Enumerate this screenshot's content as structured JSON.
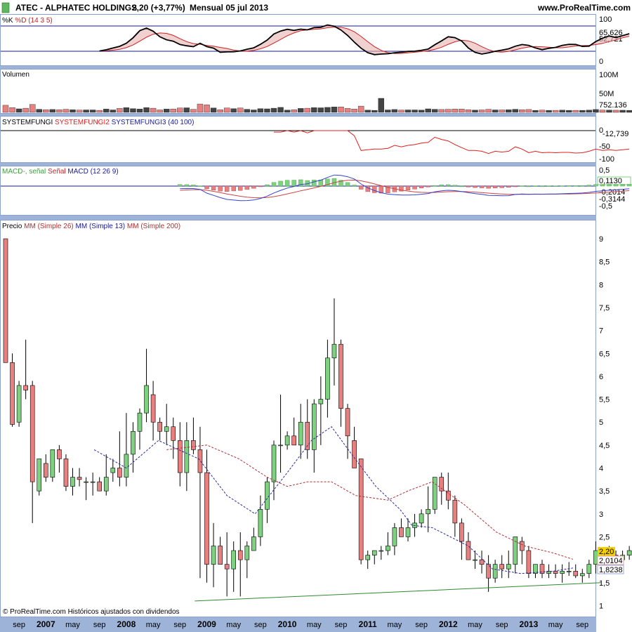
{
  "header": {
    "symbol": "ATEC - ALPHATEC HOLDINGS",
    "price_change": "2,20 (+3,77%)",
    "period_date": "Mensual  05 jul 2013",
    "site": "www.ProRealTime.com"
  },
  "footer": {
    "copyright": "© ProRealTime.com  Históricos ajustados con dividendos"
  },
  "colors": {
    "up": "#7ed17e",
    "down": "#e88080",
    "panel_border": "#8aa2cc",
    "ma26": "#b03030",
    "ma13": "#2a2aa0",
    "trend": "#2e8b2e",
    "stoch_k": "#000000",
    "stoch_d": "#cc2222",
    "systemfungi2": "#e02020",
    "macd_line": "#3344cc",
    "signal_line": "#cc4444"
  },
  "panels": {
    "stoch": {
      "labels": [
        "%K",
        "%D",
        "(14 3 5)"
      ],
      "ticks": [
        "100",
        "0"
      ],
      "values": [
        "65,626",
        "52,721"
      ]
    },
    "volume": {
      "label": "Volumen",
      "ticks": [
        "100M",
        "50M"
      ],
      "values": [
        "752.136"
      ]
    },
    "systemfungi": {
      "labels": [
        "SYSTEMFUNGI",
        "SYSTEMFUNGI2",
        "SYSTEMFUNGI3",
        "(40 100)"
      ],
      "ticks": [
        "0",
        "-50",
        "-100"
      ],
      "values": [
        "-12,739"
      ]
    },
    "macd": {
      "labels": [
        "MACD-,",
        "señal",
        "Señal",
        "MACD",
        "(12 26 9)"
      ],
      "ticks": [
        "0,5",
        "-0,5"
      ],
      "values": [
        "0,1130",
        "-0,2014",
        "-0,3144"
      ]
    },
    "price": {
      "labels": [
        "Precio",
        "MM",
        "(Simple 26)",
        "MM",
        "(Simple 13)",
        "MM",
        "(Simple 200)"
      ],
      "ticks": [
        "9",
        "8,5",
        "8",
        "7,5",
        "7",
        "6,5",
        "6",
        "5,5",
        "5",
        "4,5",
        "4",
        "3,5",
        "3",
        "2,5",
        "2",
        "1,5",
        "1"
      ],
      "values": [
        "2,20",
        "2,0104",
        "1,8238"
      ]
    }
  },
  "chart_data": {
    "type": "candlestick",
    "frequency": "monthly",
    "start": "2006-07",
    "x_axis": {
      "ticks": [
        "sep",
        "2007",
        "may",
        "sep",
        "2008",
        "may",
        "sep",
        "2009",
        "may",
        "sep",
        "2010",
        "may",
        "sep",
        "2011",
        "may",
        "sep",
        "2012",
        "may",
        "sep",
        "2013",
        "may",
        "sep"
      ]
    },
    "y_axis": {
      "range": [
        0.8,
        9.1
      ]
    },
    "ohlc": [
      [
        9.0,
        9.0,
        6.3,
        6.3
      ],
      [
        6.3,
        6.5,
        4.9,
        4.95
      ],
      [
        5.0,
        5.9,
        4.9,
        5.8
      ],
      [
        5.8,
        6.8,
        5.5,
        5.7
      ],
      [
        5.8,
        5.9,
        2.8,
        3.7
      ],
      [
        3.5,
        4.2,
        3.4,
        4.2
      ],
      [
        4.1,
        4.3,
        3.7,
        3.8
      ],
      [
        3.8,
        4.4,
        3.7,
        4.4
      ],
      [
        4.4,
        4.5,
        3.9,
        4.2
      ],
      [
        4.2,
        4.3,
        3.5,
        3.6
      ],
      [
        3.6,
        4.0,
        3.4,
        3.8
      ],
      [
        3.8,
        4.0,
        3.6,
        3.75
      ],
      [
        3.7,
        3.8,
        3.3,
        3.7
      ],
      [
        3.7,
        3.9,
        3.4,
        3.7
      ],
      [
        3.7,
        3.8,
        3.5,
        3.5
      ],
      [
        3.5,
        4.3,
        3.4,
        3.8
      ],
      [
        3.9,
        4.2,
        3.7,
        4.0
      ],
      [
        4.0,
        4.8,
        3.6,
        3.8
      ],
      [
        3.8,
        5.2,
        3.6,
        4.3
      ],
      [
        4.3,
        5.0,
        3.9,
        4.8
      ],
      [
        4.8,
        5.3,
        4.4,
        5.2
      ],
      [
        5.2,
        6.6,
        5.0,
        5.8
      ],
      [
        5.6,
        5.9,
        4.6,
        5.0
      ],
      [
        5.0,
        5.1,
        4.6,
        4.8
      ],
      [
        4.8,
        5.4,
        4.5,
        4.9
      ],
      [
        4.9,
        5.1,
        4.2,
        4.6
      ],
      [
        4.6,
        5.0,
        3.6,
        3.9
      ],
      [
        3.9,
        5.0,
        3.5,
        4.6
      ],
      [
        4.6,
        5.1,
        4.3,
        4.4
      ],
      [
        4.4,
        4.9,
        1.6,
        3.9
      ],
      [
        3.9,
        4.4,
        1.5,
        1.9
      ],
      [
        1.9,
        2.8,
        1.4,
        2.3
      ],
      [
        2.3,
        2.5,
        1.9,
        1.9
      ],
      [
        1.9,
        2.6,
        1.2,
        1.8
      ],
      [
        1.8,
        2.4,
        1.3,
        2.2
      ],
      [
        2.2,
        2.6,
        1.2,
        2.0
      ],
      [
        2.0,
        2.4,
        1.6,
        2.3
      ],
      [
        2.2,
        2.7,
        2.2,
        2.5
      ],
      [
        2.5,
        3.4,
        2.3,
        3.1
      ],
      [
        3.1,
        3.8,
        2.8,
        3.7
      ],
      [
        3.7,
        4.6,
        3.3,
        4.5
      ],
      [
        4.5,
        5.6,
        3.9,
        4.5
      ],
      [
        4.5,
        4.8,
        4.4,
        4.7
      ],
      [
        4.7,
        5.1,
        4.5,
        4.5
      ],
      [
        4.5,
        5.4,
        4.2,
        5.0
      ],
      [
        5.0,
        5.5,
        4.2,
        4.4
      ],
      [
        4.4,
        5.5,
        3.9,
        5.4
      ],
      [
        5.4,
        6.0,
        4.5,
        5.5
      ],
      [
        5.5,
        6.8,
        5.1,
        6.4
      ],
      [
        6.4,
        7.7,
        5.8,
        6.7
      ],
      [
        6.7,
        6.8,
        4.9,
        5.3
      ],
      [
        5.3,
        5.4,
        4.2,
        4.7
      ],
      [
        4.6,
        4.9,
        4.0,
        4.0
      ],
      [
        4.2,
        4.2,
        1.9,
        2.0
      ],
      [
        2.0,
        2.2,
        1.8,
        2.1
      ],
      [
        2.1,
        2.2,
        1.9,
        2.2
      ],
      [
        2.2,
        2.3,
        2.0,
        2.2
      ],
      [
        2.2,
        2.6,
        2.1,
        2.3
      ],
      [
        2.3,
        2.8,
        2.1,
        2.7
      ],
      [
        2.7,
        2.9,
        2.5,
        2.5
      ],
      [
        2.5,
        2.9,
        2.4,
        2.7
      ],
      [
        2.7,
        3.0,
        2.5,
        2.8
      ],
      [
        2.8,
        3.1,
        2.7,
        3.0
      ],
      [
        3.0,
        3.6,
        2.6,
        3.1
      ],
      [
        3.1,
        3.8,
        3.0,
        3.8
      ],
      [
        3.8,
        3.9,
        3.2,
        3.5
      ],
      [
        3.5,
        3.9,
        3.1,
        3.3
      ],
      [
        3.3,
        3.4,
        2.5,
        2.8
      ],
      [
        2.8,
        2.9,
        2.0,
        2.4
      ],
      [
        2.4,
        2.6,
        2.0,
        2.0
      ],
      [
        2.0,
        2.2,
        1.8,
        2.0
      ],
      [
        2.0,
        2.2,
        1.7,
        1.9
      ],
      [
        1.9,
        2.1,
        1.3,
        1.6
      ],
      [
        1.6,
        2.0,
        1.5,
        1.9
      ],
      [
        1.9,
        2.1,
        1.6,
        1.8
      ],
      [
        1.8,
        2.2,
        1.6,
        1.9
      ],
      [
        1.9,
        2.5,
        1.7,
        2.5
      ],
      [
        2.4,
        2.5,
        1.9,
        2.2
      ],
      [
        2.2,
        2.3,
        1.6,
        1.7
      ],
      [
        1.7,
        1.9,
        1.6,
        1.9
      ],
      [
        1.9,
        2.0,
        1.6,
        1.7
      ],
      [
        1.7,
        1.9,
        1.6,
        1.75
      ],
      [
        1.75,
        1.9,
        1.6,
        1.7
      ],
      [
        1.7,
        1.9,
        1.5,
        1.75
      ],
      [
        1.75,
        1.95,
        1.65,
        1.75
      ],
      [
        1.75,
        1.9,
        1.6,
        1.65
      ],
      [
        1.65,
        1.8,
        1.5,
        1.7
      ],
      [
        1.7,
        2.0,
        1.6,
        1.9
      ],
      [
        1.9,
        2.4,
        1.7,
        2.2
      ],
      [
        2.2,
        2.2,
        1.8,
        2.0
      ],
      [
        2.0,
        2.3,
        1.9,
        2.1
      ],
      [
        2.1,
        2.2,
        1.85,
        2.0
      ],
      [
        2.0,
        2.2,
        1.85,
        2.1
      ],
      [
        2.1,
        2.3,
        2.0,
        2.2
      ]
    ],
    "ma26": [
      [
        2008.5,
        4.4
      ],
      [
        2009.0,
        4.5
      ],
      [
        2009.4,
        4.2
      ],
      [
        2009.75,
        3.8
      ],
      [
        2010.0,
        3.6
      ],
      [
        2010.25,
        3.7
      ],
      [
        2010.55,
        3.7
      ],
      [
        2010.85,
        3.4
      ],
      [
        2011.25,
        3.3
      ],
      [
        2011.5,
        3.5
      ],
      [
        2011.8,
        3.7
      ],
      [
        2012.2,
        3.2
      ],
      [
        2012.6,
        2.6
      ],
      [
        2012.95,
        2.3
      ],
      [
        2013.3,
        2.15
      ],
      [
        2013.55,
        2.01
      ]
    ],
    "ma13": [
      [
        2007.6,
        4.4
      ],
      [
        2008.0,
        4.0
      ],
      [
        2008.4,
        4.6
      ],
      [
        2008.9,
        4.2
      ],
      [
        2009.25,
        3.4
      ],
      [
        2009.6,
        3.0
      ],
      [
        2010.0,
        3.9
      ],
      [
        2010.3,
        4.6
      ],
      [
        2010.55,
        4.9
      ],
      [
        2010.8,
        4.3
      ],
      [
        2011.1,
        3.6
      ],
      [
        2011.4,
        3.1
      ],
      [
        2011.55,
        2.75
      ],
      [
        2011.8,
        2.7
      ],
      [
        2012.25,
        2.3
      ],
      [
        2012.55,
        1.8
      ],
      [
        2012.9,
        1.7
      ],
      [
        2013.3,
        1.75
      ],
      [
        2013.55,
        1.82
      ]
    ],
    "trendline": [
      [
        2008.85,
        1.1
      ],
      [
        2013.9,
        1.5
      ]
    ]
  }
}
